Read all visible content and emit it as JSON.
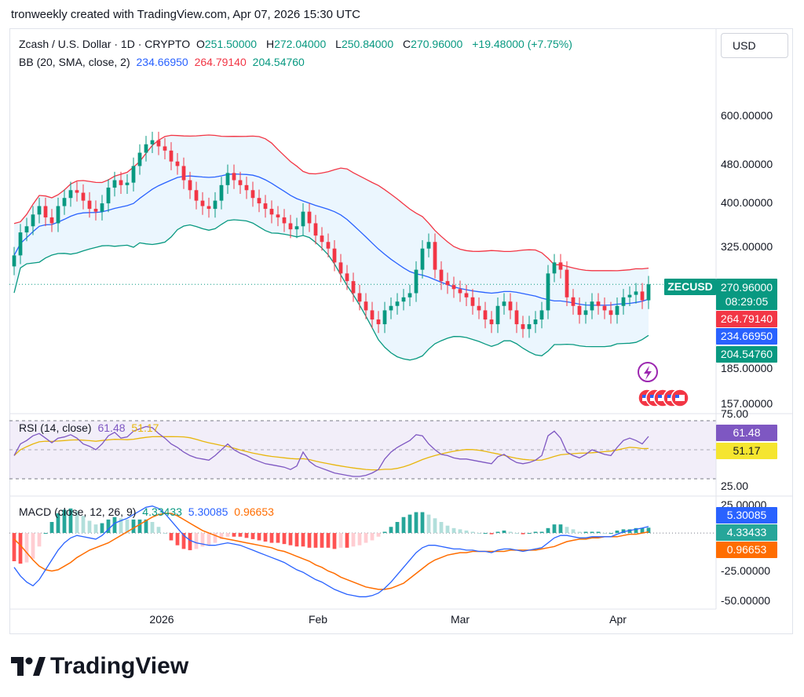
{
  "header": {
    "credit": "tronweekly created with TradingView.com, Apr 07, 2026 15:30 UTC"
  },
  "currency_button": "USD",
  "legend": {
    "symbol": "Zcash / U.S. Dollar · 1D · CRYPTO",
    "o_label": "O",
    "o_value": "251.50000",
    "h_label": "H",
    "h_value": "272.04000",
    "l_label": "L",
    "l_value": "250.84000",
    "c_label": "C",
    "c_value": "270.96000",
    "change": "+19.48000 (+7.75%)",
    "bb_label": "BB (20, SMA, close, 2)",
    "bb_basis": "234.66950",
    "bb_upper": "264.79140",
    "bb_lower": "204.54760",
    "rsi_label": "RSI (14, close)",
    "rsi_value": "61.48",
    "rsi_ma": "51.17",
    "macd_label": "MACD (close, 12, 26, 9)",
    "macd_hist": "4.33433",
    "macd_line": "5.30085",
    "macd_signal": "0.96653"
  },
  "price_axis": {
    "ticks": [
      "600.00000",
      "480.00000",
      "400.00000",
      "325.00000",
      "185.00000",
      "157.00000"
    ],
    "symbol_tag": "ZECUSD",
    "last_price": "270.96000",
    "countdown": "08:29:05",
    "bb_upper_tag": "264.79140",
    "bb_basis_tag": "234.66950",
    "bb_lower_tag": "204.54760"
  },
  "rsi_axis": {
    "ticks": [
      "75.00",
      "25.00"
    ],
    "value_tag": "61.48",
    "ma_tag": "51.17"
  },
  "macd_axis": {
    "ticks": [
      "25.00000",
      "-25.00000",
      "-50.00000"
    ],
    "line_tag": "5.30085",
    "hist_tag": "4.33433",
    "signal_tag": "0.96653"
  },
  "time_axis": {
    "ticks": [
      "2026",
      "Feb",
      "Mar",
      "Apr"
    ]
  },
  "branding": {
    "name": "TradingView"
  },
  "colors": {
    "up": "#089981",
    "down": "#f23645",
    "basis": "#2962ff",
    "rsi": "#7e57c2",
    "rsi_ma": "#e8b60c",
    "signal": "#ff6d00"
  },
  "chart_data": [
    {
      "type": "candlestick",
      "title": "Zcash / U.S. Dollar · 1D · CRYPTO",
      "scale": "log",
      "ylim": [
        150,
        760
      ],
      "x_start": "2025-12-01",
      "x_end": "2026-04-07",
      "close_approx": [
        310,
        345,
        355,
        375,
        390,
        370,
        360,
        390,
        405,
        420,
        415,
        400,
        385,
        380,
        395,
        425,
        440,
        430,
        435,
        470,
        500,
        520,
        530,
        515,
        505,
        480,
        470,
        440,
        420,
        400,
        390,
        385,
        400,
        430,
        455,
        440,
        430,
        420,
        405,
        395,
        385,
        375,
        370,
        360,
        350,
        355,
        380,
        360,
        340,
        330,
        320,
        300,
        285,
        275,
        260,
        250,
        240,
        230,
        225,
        240,
        245,
        250,
        255,
        260,
        290,
        320,
        330,
        290,
        275,
        270,
        265,
        260,
        255,
        245,
        240,
        230,
        225,
        245,
        250,
        240,
        225,
        220,
        225,
        230,
        240,
        285,
        300,
        290,
        255,
        245,
        235,
        240,
        250,
        245,
        240,
        235,
        245,
        255,
        258,
        262,
        251.5,
        270.96
      ],
      "last": {
        "open": 251.5,
        "high": 272.04,
        "low": 250.84,
        "close": 270.96,
        "change": 19.48,
        "change_pct": 7.75
      },
      "bollinger": {
        "length": 20,
        "mult": 2,
        "basis": 234.6695,
        "upper": 264.7914,
        "lower": 204.5476
      }
    },
    {
      "type": "line",
      "title": "RSI (14, close)",
      "ylim": [
        25,
        75
      ],
      "rsi_approx": [
        45,
        55,
        58,
        62,
        64,
        60,
        56,
        60,
        61,
        63,
        60,
        55,
        53,
        50,
        55,
        62,
        65,
        60,
        61,
        66,
        68,
        70,
        69,
        64,
        60,
        55,
        52,
        48,
        45,
        43,
        42,
        41,
        45,
        50,
        55,
        50,
        47,
        45,
        42,
        40,
        38,
        37,
        36,
        35,
        33,
        36,
        48,
        40,
        36,
        34,
        32,
        30,
        29,
        28,
        27,
        27,
        28,
        30,
        33,
        42,
        48,
        52,
        55,
        58,
        63,
        62,
        55,
        50,
        46,
        45,
        43,
        42,
        42,
        41,
        40,
        39,
        38,
        44,
        46,
        42,
        39,
        38,
        39,
        41,
        45,
        62,
        66,
        60,
        48,
        45,
        43,
        46,
        50,
        48,
        46,
        45,
        52,
        58,
        60,
        58,
        55,
        61.48
      ],
      "value": 61.48,
      "ma": 51.17
    },
    {
      "type": "bar+line",
      "title": "MACD (close, 12, 26, 9)",
      "ylim": [
        -55,
        25
      ],
      "macd_line_approx": [
        -28,
        -35,
        -40,
        -43,
        -38,
        -30,
        -22,
        -14,
        -8,
        -4,
        -2,
        -3,
        -4,
        -5,
        -2,
        3,
        8,
        10,
        12,
        15,
        18,
        21,
        22,
        20,
        16,
        10,
        4,
        -2,
        -6,
        -8,
        -9,
        -10,
        -10,
        -9,
        -8,
        -9,
        -10,
        -12,
        -14,
        -16,
        -18,
        -20,
        -22,
        -24,
        -27,
        -30,
        -32,
        -35,
        -38,
        -40,
        -43,
        -46,
        -48,
        -50,
        -51,
        -52,
        -52,
        -51,
        -49,
        -45,
        -40,
        -34,
        -28,
        -22,
        -16,
        -12,
        -10,
        -10,
        -11,
        -12,
        -13,
        -13,
        -14,
        -14,
        -15,
        -15,
        -16,
        -14,
        -13,
        -13,
        -14,
        -15,
        -14,
        -13,
        -12,
        -8,
        -4,
        -2,
        -2,
        -3,
        -4,
        -4,
        -3,
        -3,
        -3,
        -3,
        -1,
        1,
        2,
        3,
        4,
        5.30085
      ],
      "signal_approx": [
        -5,
        -10,
        -16,
        -22,
        -27,
        -30,
        -31,
        -30,
        -27,
        -24,
        -20,
        -17,
        -14,
        -12,
        -10,
        -8,
        -5,
        -2,
        1,
        4,
        7,
        10,
        13,
        15,
        16,
        16,
        14,
        11,
        8,
        5,
        2,
        0,
        -2,
        -4,
        -5,
        -6,
        -7,
        -8,
        -9,
        -10,
        -11,
        -12,
        -14,
        -15,
        -17,
        -19,
        -21,
        -23,
        -26,
        -28,
        -31,
        -33,
        -36,
        -38,
        -40,
        -42,
        -44,
        -45,
        -46,
        -46,
        -45,
        -43,
        -41,
        -37,
        -33,
        -29,
        -25,
        -22,
        -20,
        -18,
        -17,
        -16,
        -16,
        -15,
        -15,
        -15,
        -15,
        -15,
        -15,
        -14,
        -14,
        -14,
        -14,
        -14,
        -13,
        -12,
        -11,
        -9,
        -7,
        -6,
        -5,
        -5,
        -4,
        -4,
        -3,
        -3,
        -3,
        -2,
        -1,
        -1,
        0,
        0.96653
      ],
      "histogram_last": 4.33433
    }
  ]
}
